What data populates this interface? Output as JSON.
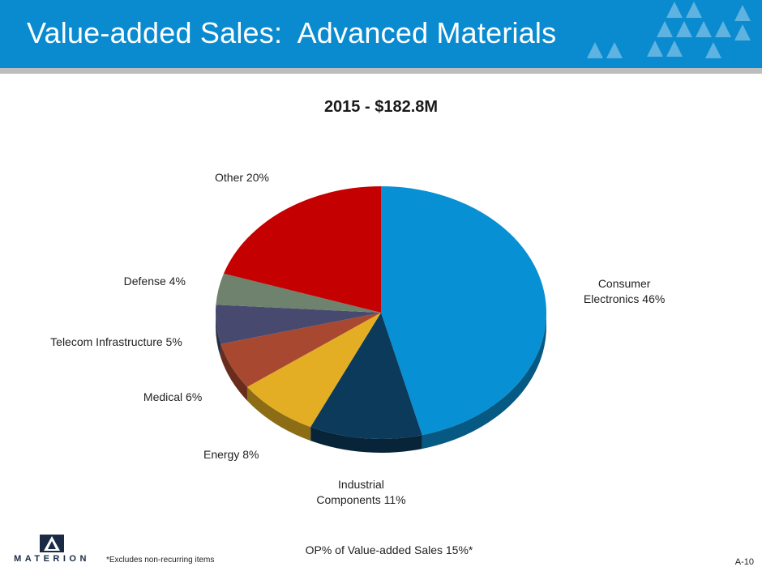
{
  "slide": {
    "title": "Value-added Sales:  Advanced Materials",
    "page_number": "A-10",
    "footnote": "*Excludes non-recurring items",
    "op_note": "OP% of Value-added Sales 15%*",
    "logo_text": "MATERION",
    "header_color": "#0a8bd0"
  },
  "chart_data": {
    "type": "pie",
    "title": "2015 - $182.8M",
    "start_angle_deg": 0,
    "direction": "clockwise",
    "slices": [
      {
        "label": "Consumer\nElectronics 46%",
        "value": 46,
        "color": "#0890d4"
      },
      {
        "label": "Industrial\nComponents 11%",
        "value": 11,
        "color": "#0b3a5a"
      },
      {
        "label": "Energy 8%",
        "value": 8,
        "color": "#e4ae24"
      },
      {
        "label": "Medical  6%",
        "value": 6,
        "color": "#a94830"
      },
      {
        "label": "Telecom Infrastructure 5%",
        "value": 5,
        "color": "#474a6e"
      },
      {
        "label": "Defense 4%",
        "value": 4,
        "color": "#6e826d"
      },
      {
        "label": "Other 20%",
        "value": 20,
        "color": "#c40000"
      }
    ]
  }
}
